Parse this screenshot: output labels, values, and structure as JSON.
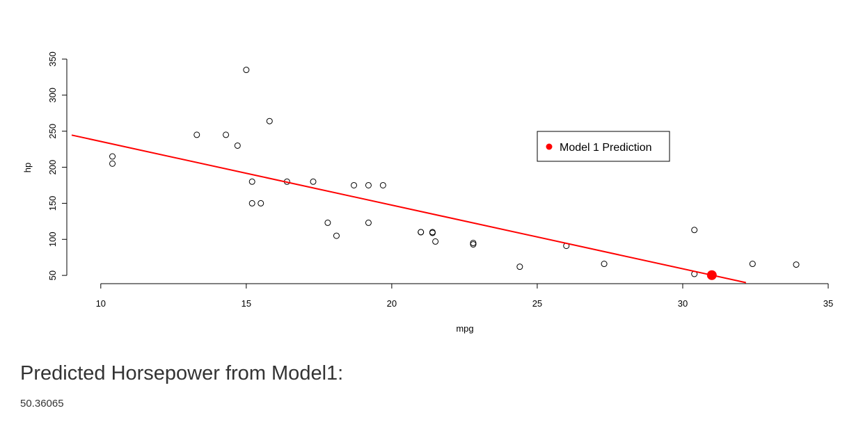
{
  "chart_data": {
    "type": "scatter",
    "title": "",
    "xlabel": "mpg",
    "ylabel": "hp",
    "xlim": [
      9,
      35
    ],
    "ylim": [
      40,
      350
    ],
    "xticks": [
      10,
      15,
      20,
      25,
      30,
      35
    ],
    "yticks": [
      50,
      100,
      150,
      200,
      250,
      300,
      350
    ],
    "grid": false,
    "points": [
      {
        "x": 21.0,
        "y": 110
      },
      {
        "x": 21.0,
        "y": 110
      },
      {
        "x": 22.8,
        "y": 93
      },
      {
        "x": 21.4,
        "y": 110
      },
      {
        "x": 18.7,
        "y": 175
      },
      {
        "x": 18.1,
        "y": 105
      },
      {
        "x": 14.3,
        "y": 245
      },
      {
        "x": 24.4,
        "y": 62
      },
      {
        "x": 22.8,
        "y": 95
      },
      {
        "x": 19.2,
        "y": 123
      },
      {
        "x": 17.8,
        "y": 123
      },
      {
        "x": 16.4,
        "y": 180
      },
      {
        "x": 17.3,
        "y": 180
      },
      {
        "x": 15.2,
        "y": 180
      },
      {
        "x": 10.4,
        "y": 205
      },
      {
        "x": 10.4,
        "y": 215
      },
      {
        "x": 14.7,
        "y": 230
      },
      {
        "x": 32.4,
        "y": 66
      },
      {
        "x": 30.4,
        "y": 52
      },
      {
        "x": 33.9,
        "y": 65
      },
      {
        "x": 21.5,
        "y": 97
      },
      {
        "x": 15.5,
        "y": 150
      },
      {
        "x": 15.2,
        "y": 150
      },
      {
        "x": 13.3,
        "y": 245
      },
      {
        "x": 19.2,
        "y": 175
      },
      {
        "x": 27.3,
        "y": 66
      },
      {
        "x": 26.0,
        "y": 91
      },
      {
        "x": 30.4,
        "y": 113
      },
      {
        "x": 15.8,
        "y": 264
      },
      {
        "x": 19.7,
        "y": 175
      },
      {
        "x": 15.0,
        "y": 335
      },
      {
        "x": 21.4,
        "y": 109
      }
    ],
    "regression_line": {
      "intercept": 324.08,
      "slope": -8.83,
      "color": "#ff0000"
    },
    "prediction_point": {
      "x": 31,
      "y": 50.36065,
      "color": "#ff0000"
    },
    "legend": {
      "position": "top-right",
      "entries": [
        {
          "label": "Model 1 Prediction",
          "color": "#ff0000",
          "symbol": "filled-circle"
        }
      ]
    }
  },
  "result": {
    "title": "Predicted Horsepower from Model1:",
    "value": "50.36065"
  }
}
